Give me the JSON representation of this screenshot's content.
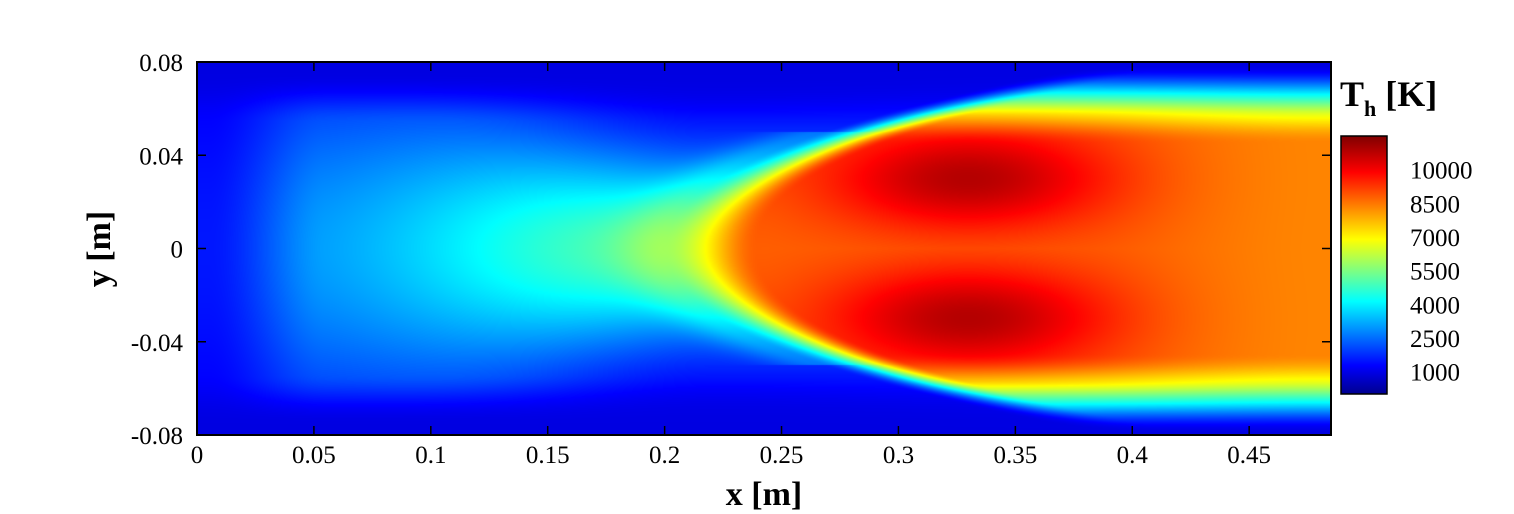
{
  "chart_data": {
    "type": "heatmap",
    "title": "",
    "xlabel": "x [m]",
    "ylabel": "y [m]",
    "xlim": [
      0,
      0.485
    ],
    "ylim": [
      -0.08,
      0.08
    ],
    "x_ticks": [
      "0",
      "0.05",
      "0.1",
      "0.15",
      "0.2",
      "0.25",
      "0.3",
      "0.35",
      "0.4",
      "0.45"
    ],
    "x_tick_values": [
      0,
      0.05,
      0.1,
      0.15,
      0.2,
      0.25,
      0.3,
      0.35,
      0.4,
      0.45
    ],
    "y_ticks": [
      "0.08",
      "0.04",
      "0",
      "-0.04",
      "-0.08"
    ],
    "y_tick_values": [
      0.08,
      0.04,
      0,
      -0.04,
      -0.08
    ],
    "colorbar": {
      "title_main": "T",
      "title_sub": "h",
      "title_unit": " [K]",
      "range": [
        0,
        11500
      ],
      "colormap": "jet",
      "ticks": [
        "10000",
        "8500",
        "7000",
        "5500",
        "4000",
        "2500",
        "1000"
      ],
      "tick_values": [
        10000,
        8500,
        7000,
        5500,
        4000,
        2500,
        1000
      ]
    },
    "field": {
      "description_points": [
        {
          "x": 0.02,
          "y": 0,
          "T": 3000
        },
        {
          "x": 0.1,
          "y": 0,
          "T": 4300
        },
        {
          "x": 0.2,
          "y": 0,
          "T": 7000
        },
        {
          "x": 0.3,
          "y": 0,
          "T": 9300
        },
        {
          "x": 0.33,
          "y": 0.03,
          "T": 10800
        },
        {
          "x": 0.33,
          "y": -0.03,
          "T": 10800
        },
        {
          "x": 0.45,
          "y": 0,
          "T": 9000
        },
        {
          "x": 0.45,
          "y": 0.065,
          "T": 4500
        },
        {
          "x": 0.1,
          "y": 0.07,
          "T": 1000
        }
      ]
    }
  }
}
